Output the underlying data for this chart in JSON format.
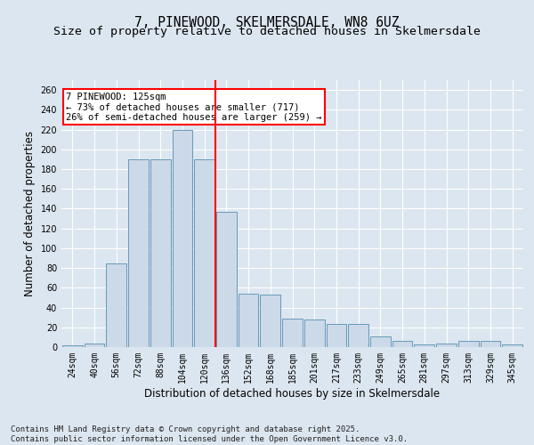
{
  "title1": "7, PINEWOOD, SKELMERSDALE, WN8 6UZ",
  "title2": "Size of property relative to detached houses in Skelmersdale",
  "xlabel": "Distribution of detached houses by size in Skelmersdale",
  "ylabel": "Number of detached properties",
  "categories": [
    "24sqm",
    "40sqm",
    "56sqm",
    "72sqm",
    "88sqm",
    "104sqm",
    "120sqm",
    "136sqm",
    "152sqm",
    "168sqm",
    "185sqm",
    "201sqm",
    "217sqm",
    "233sqm",
    "249sqm",
    "265sqm",
    "281sqm",
    "297sqm",
    "313sqm",
    "329sqm",
    "345sqm"
  ],
  "values": [
    2,
    4,
    85,
    190,
    190,
    220,
    190,
    137,
    54,
    53,
    29,
    28,
    23,
    23,
    11,
    6,
    3,
    4,
    6,
    6,
    3
  ],
  "bar_color": "#ccd9e8",
  "bar_edge_color": "#6699bb",
  "vline_color": "red",
  "annotation_text": "7 PINEWOOD: 125sqm\n← 73% of detached houses are smaller (717)\n26% of semi-detached houses are larger (259) →",
  "annotation_box_color": "white",
  "annotation_box_edge": "red",
  "ylim": [
    0,
    270
  ],
  "yticks": [
    0,
    20,
    40,
    60,
    80,
    100,
    120,
    140,
    160,
    180,
    200,
    220,
    240,
    260
  ],
  "background_color": "#dce6f0",
  "plot_bg_color": "#dce6f0",
  "grid_color": "white",
  "footer": "Contains HM Land Registry data © Crown copyright and database right 2025.\nContains public sector information licensed under the Open Government Licence v3.0.",
  "title_fontsize": 10.5,
  "subtitle_fontsize": 9.5,
  "tick_fontsize": 7,
  "label_fontsize": 8.5,
  "footer_fontsize": 6.5
}
